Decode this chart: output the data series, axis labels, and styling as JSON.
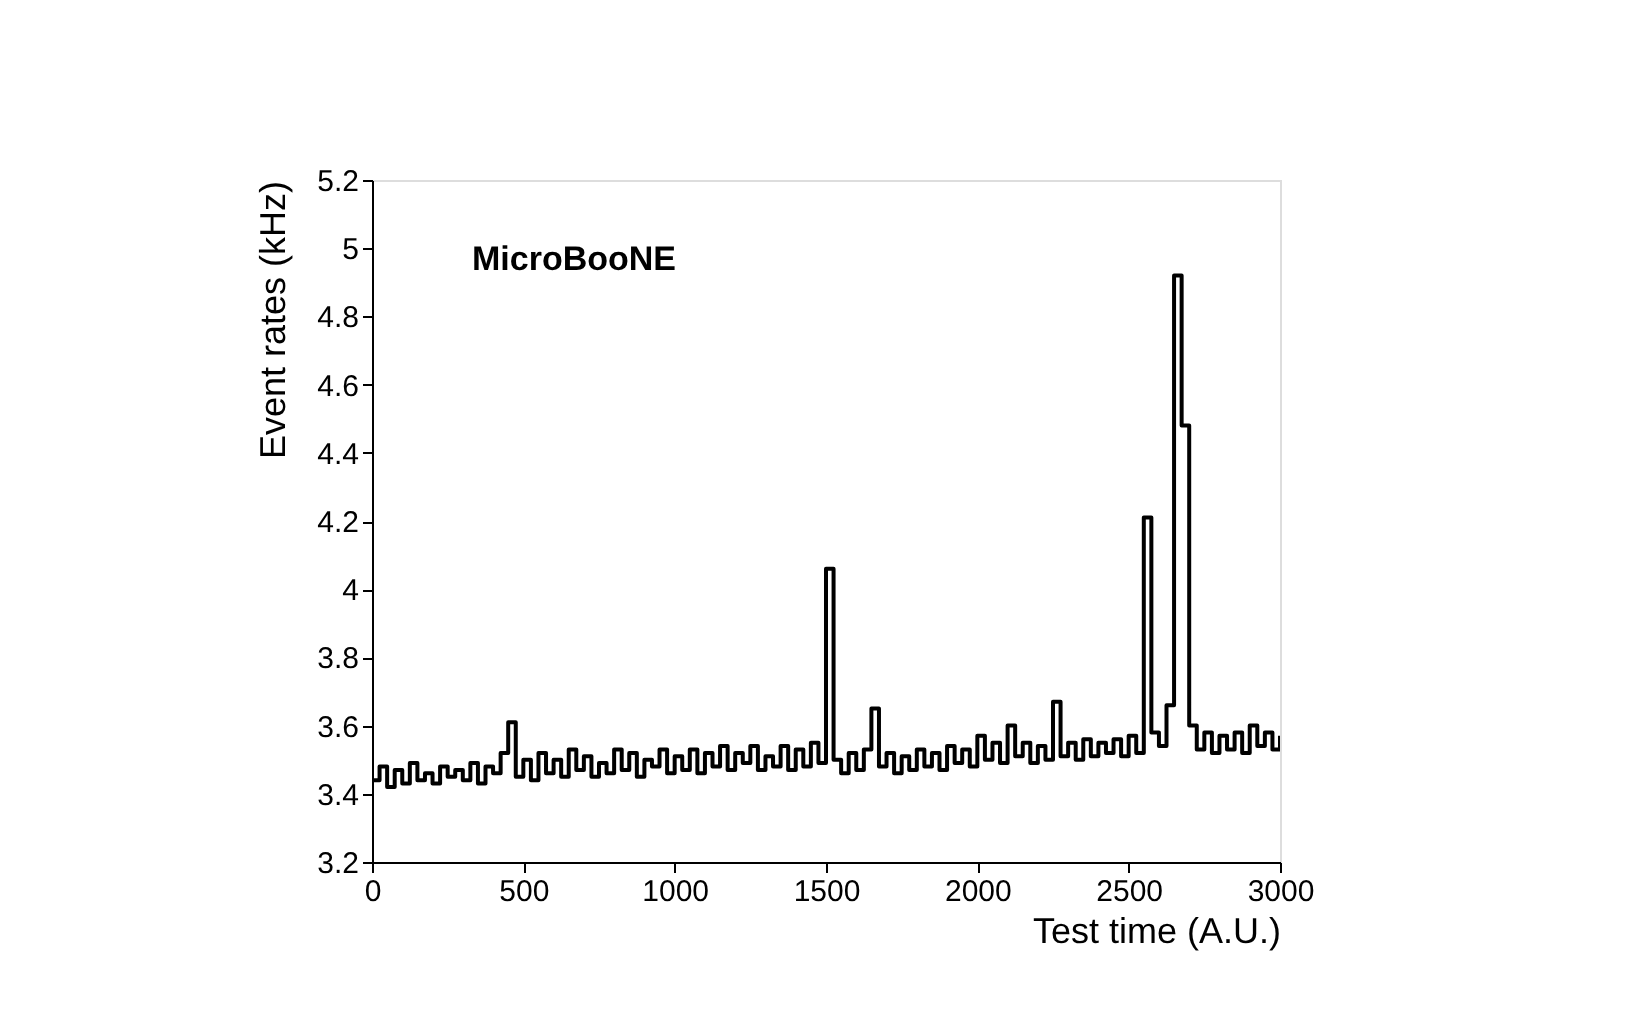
{
  "chart_data": {
    "type": "step",
    "xlabel": "Test time (A.U.)",
    "ylabel": "Event rates (kHz)",
    "annotations": [
      "MicroBooNE"
    ],
    "x": [
      0,
      25,
      50,
      75,
      100,
      125,
      150,
      175,
      200,
      225,
      250,
      275,
      300,
      325,
      350,
      375,
      400,
      425,
      450,
      475,
      500,
      525,
      550,
      575,
      600,
      625,
      650,
      675,
      700,
      725,
      750,
      775,
      800,
      825,
      850,
      875,
      900,
      925,
      950,
      975,
      1000,
      1025,
      1050,
      1075,
      1100,
      1125,
      1150,
      1175,
      1200,
      1225,
      1250,
      1275,
      1300,
      1325,
      1350,
      1375,
      1400,
      1425,
      1450,
      1475,
      1500,
      1525,
      1550,
      1575,
      1600,
      1625,
      1650,
      1675,
      1700,
      1725,
      1750,
      1775,
      1800,
      1825,
      1850,
      1875,
      1900,
      1925,
      1950,
      1975,
      2000,
      2025,
      2050,
      2075,
      2100,
      2125,
      2150,
      2175,
      2200,
      2225,
      2250,
      2275,
      2300,
      2325,
      2350,
      2375,
      2400,
      2425,
      2450,
      2475,
      2500,
      2525,
      2550,
      2575,
      2600,
      2625,
      2650,
      2675,
      2700,
      2725,
      2750,
      2775,
      2800,
      2825,
      2850,
      2875,
      2900,
      2925,
      2950,
      2975,
      3000
    ],
    "series": [
      {
        "color": "#000000",
        "values": [
          3.44,
          3.48,
          3.42,
          3.47,
          3.43,
          3.49,
          3.44,
          3.46,
          3.43,
          3.48,
          3.45,
          3.47,
          3.44,
          3.49,
          3.43,
          3.48,
          3.46,
          3.52,
          3.61,
          3.45,
          3.5,
          3.44,
          3.52,
          3.46,
          3.5,
          3.45,
          3.53,
          3.47,
          3.51,
          3.45,
          3.49,
          3.46,
          3.53,
          3.47,
          3.52,
          3.45,
          3.5,
          3.48,
          3.53,
          3.46,
          3.51,
          3.47,
          3.53,
          3.46,
          3.52,
          3.48,
          3.54,
          3.47,
          3.52,
          3.49,
          3.54,
          3.47,
          3.51,
          3.48,
          3.54,
          3.47,
          3.53,
          3.48,
          3.55,
          3.49,
          4.06,
          3.5,
          3.46,
          3.52,
          3.47,
          3.53,
          3.65,
          3.48,
          3.52,
          3.46,
          3.51,
          3.47,
          3.53,
          3.48,
          3.52,
          3.47,
          3.54,
          3.49,
          3.53,
          3.48,
          3.57,
          3.5,
          3.55,
          3.49,
          3.6,
          3.51,
          3.55,
          3.49,
          3.54,
          3.5,
          3.67,
          3.51,
          3.55,
          3.5,
          3.56,
          3.51,
          3.55,
          3.52,
          3.56,
          3.51,
          3.57,
          3.52,
          4.21,
          3.58,
          3.54,
          3.66,
          4.92,
          4.48,
          3.6,
          3.53,
          3.58,
          3.52,
          3.57,
          3.53,
          3.58,
          3.52,
          3.6,
          3.54,
          3.58,
          3.53,
          3.57
        ]
      }
    ],
    "xlim": [
      0,
      3000
    ],
    "xticks": [
      0,
      500,
      1000,
      1500,
      2000,
      2500,
      3000
    ],
    "ylim": [
      3.2,
      5.2
    ],
    "yticks": [
      3.2,
      3.4,
      3.6,
      3.8,
      4,
      4.2,
      4.4,
      4.6,
      4.8,
      5,
      5.2
    ],
    "grid": false,
    "line_style": "solid",
    "marker": "none"
  }
}
